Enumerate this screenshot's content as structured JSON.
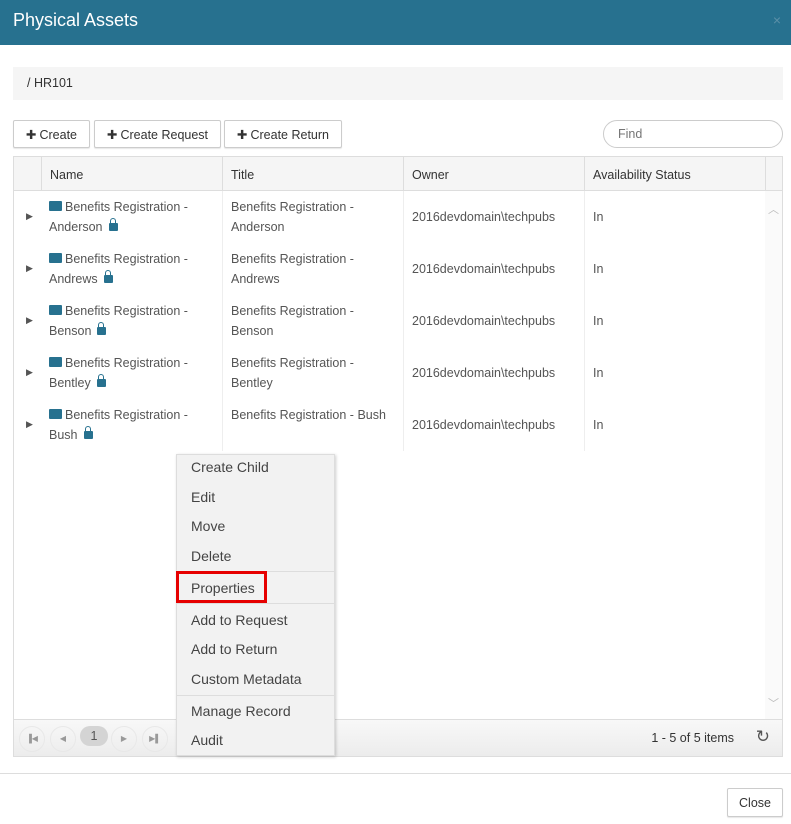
{
  "dialog": {
    "title": "Physical Assets",
    "close_icon": "×"
  },
  "breadcrumb": "/ HR101",
  "toolbar": {
    "create": "Create",
    "create_request": "Create Request",
    "create_return": "Create Return",
    "find_placeholder": "Find"
  },
  "grid": {
    "columns": [
      "Name",
      "Title",
      "Owner",
      "Availability Status"
    ],
    "rows": [
      {
        "name1": "Benefits Registration -",
        "name2": "Anderson",
        "title1": "Benefits Registration -",
        "title2": "Anderson",
        "owner": "2016devdomain\\techpubs",
        "status": "In"
      },
      {
        "name1": "Benefits Registration -",
        "name2": "Andrews",
        "title1": "Benefits Registration -",
        "title2": "Andrews",
        "owner": "2016devdomain\\techpubs",
        "status": "In"
      },
      {
        "name1": "Benefits Registration -",
        "name2": "Benson",
        "title1": "Benefits Registration -",
        "title2": "Benson",
        "owner": "2016devdomain\\techpubs",
        "status": "In"
      },
      {
        "name1": "Benefits Registration -",
        "name2": "Bentley",
        "title1": "Benefits Registration -",
        "title2": "Bentley",
        "owner": "2016devdomain\\techpubs",
        "status": "In"
      },
      {
        "name1": "Benefits Registration -",
        "name2": "Bush",
        "title1": "Benefits Registration - Bush",
        "title2": "",
        "owner": "2016devdomain\\techpubs",
        "status": "In"
      }
    ],
    "pager": {
      "page": "1",
      "info": "1 - 5 of 5 items"
    }
  },
  "context_menu": {
    "items": [
      "Create Child",
      "Edit",
      "Move",
      "Delete",
      "Properties",
      "Add to Request",
      "Add to Return",
      "Custom Metadata",
      "Manage Record",
      "Audit"
    ],
    "highlighted": "Properties",
    "highlight_color": "#e60000"
  },
  "footer": {
    "close": "Close"
  },
  "colors": {
    "header": "#27718f",
    "accent": "#27718f"
  }
}
